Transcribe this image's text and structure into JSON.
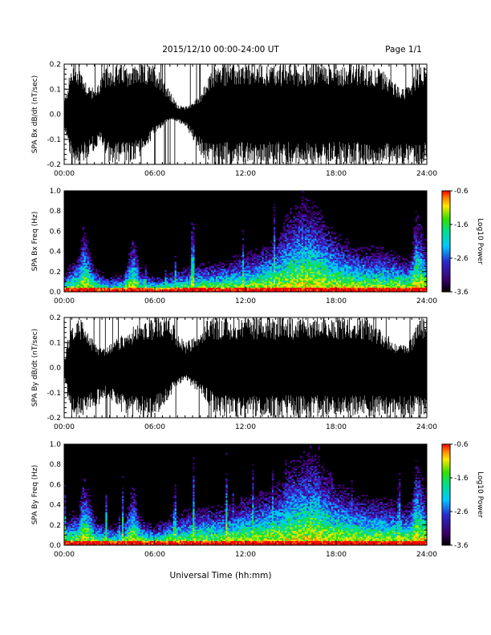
{
  "header": {
    "title": "2015/12/10  00:00-24:00 UT",
    "page": "Page 1/1"
  },
  "footer": {
    "xlabel": "Universal Time (hh:mm)"
  },
  "colors": {
    "trace": "#000000",
    "spectrogram_background": "#000000"
  },
  "chart_data": [
    {
      "type": "line",
      "ylabel": "SPA Bx dB/dt (nT/sec)",
      "xlim": [
        "00:00",
        "24:00"
      ],
      "ylim": [
        -0.2,
        0.2
      ],
      "x_ticks": [
        "00:00",
        "06:00",
        "12:00",
        "18:00",
        "24:00"
      ],
      "y_ticks": [
        "-0.2",
        "-0.1",
        "0.0",
        "0.1",
        "0.2"
      ],
      "series": [
        {
          "x": [
            0,
            0.5,
            1,
            1.5,
            2,
            2.5,
            3,
            3.5,
            4,
            4.5,
            5,
            5.5,
            6,
            6.5,
            7,
            7.5,
            8,
            8.5,
            9,
            9.5,
            10,
            11,
            12,
            13,
            14,
            15,
            16,
            17,
            18,
            19,
            20,
            21,
            22,
            22.5,
            23,
            23.5,
            24
          ],
          "upper": [
            0.05,
            0.2,
            0.2,
            0.13,
            0.1,
            0.16,
            0.2,
            0.2,
            0.2,
            0.2,
            0.2,
            0.2,
            0.2,
            0.16,
            0.09,
            0.04,
            0.03,
            0.05,
            0.08,
            0.14,
            0.2,
            0.2,
            0.2,
            0.2,
            0.2,
            0.2,
            0.2,
            0.2,
            0.2,
            0.2,
            0.2,
            0.18,
            0.12,
            0.1,
            0.14,
            0.2,
            0.2
          ],
          "lower": [
            -0.05,
            -0.2,
            -0.2,
            -0.2,
            -0.14,
            -0.12,
            -0.2,
            -0.2,
            -0.2,
            -0.2,
            -0.17,
            -0.13,
            -0.08,
            -0.05,
            -0.02,
            -0.03,
            -0.05,
            -0.1,
            -0.16,
            -0.2,
            -0.2,
            -0.2,
            -0.2,
            -0.2,
            -0.2,
            -0.2,
            -0.2,
            -0.2,
            -0.2,
            -0.2,
            -0.2,
            -0.2,
            -0.2,
            -0.2,
            -0.2,
            -0.2,
            -0.2
          ]
        }
      ]
    },
    {
      "type": "heatmap",
      "ylabel": "SPA Bx Freq (Hz)",
      "colorbar_label": "Log10 Power",
      "colorbar_ticks": [
        "-0.6",
        "-1.6",
        "-2.6",
        "-3.6"
      ],
      "clim": [
        -3.6,
        -0.6
      ],
      "xlim": [
        "00:00",
        "24:00"
      ],
      "ylim": [
        0.0,
        1.0
      ],
      "x_ticks": [
        "00:00",
        "06:00",
        "12:00",
        "18:00",
        "24:00"
      ],
      "y_ticks": [
        "0.0",
        "0.2",
        "0.4",
        "0.6",
        "0.8",
        "1.0"
      ],
      "activity": {
        "hours": [
          0,
          1,
          1.3,
          2,
          3,
          4,
          4.6,
          5,
          6,
          7,
          8,
          9,
          10,
          11,
          12,
          13,
          14,
          15,
          16,
          16.5,
          17,
          18,
          19,
          20,
          21,
          22,
          22.5,
          23,
          23.3,
          24
        ],
        "extent_hz": [
          0.2,
          0.4,
          0.7,
          0.25,
          0.15,
          0.2,
          0.6,
          0.25,
          0.15,
          0.2,
          0.25,
          0.3,
          0.3,
          0.35,
          0.4,
          0.45,
          0.55,
          0.85,
          0.95,
          0.9,
          0.8,
          0.6,
          0.5,
          0.45,
          0.45,
          0.4,
          0.35,
          0.4,
          0.85,
          0.5
        ]
      }
    },
    {
      "type": "line",
      "ylabel": "SPA By dB/dt (nT/sec)",
      "xlim": [
        "00:00",
        "24:00"
      ],
      "ylim": [
        -0.2,
        0.2
      ],
      "x_ticks": [
        "00:00",
        "06:00",
        "12:00",
        "18:00",
        "24:00"
      ],
      "y_ticks": [
        "-0.2",
        "-0.1",
        "0.0",
        "0.1",
        "0.2"
      ],
      "series": [
        {
          "x": [
            0,
            0.5,
            1,
            1.5,
            2,
            2.5,
            3,
            3.5,
            4,
            4.5,
            5,
            5.5,
            6,
            6.5,
            7,
            7.5,
            8,
            8.5,
            9,
            9.5,
            10,
            11,
            12,
            13,
            14,
            15,
            16,
            17,
            18,
            19,
            20,
            21,
            22,
            22.5,
            23,
            23.5,
            24
          ],
          "upper": [
            0.03,
            0.2,
            0.2,
            0.16,
            0.1,
            0.08,
            0.09,
            0.12,
            0.14,
            0.16,
            0.2,
            0.2,
            0.2,
            0.2,
            0.2,
            0.14,
            0.1,
            0.12,
            0.14,
            0.2,
            0.2,
            0.2,
            0.2,
            0.2,
            0.2,
            0.2,
            0.2,
            0.2,
            0.2,
            0.2,
            0.2,
            0.15,
            0.1,
            0.09,
            0.12,
            0.2,
            0.2
          ],
          "lower": [
            -0.05,
            -0.2,
            -0.2,
            -0.2,
            -0.16,
            -0.14,
            -0.12,
            -0.16,
            -0.2,
            -0.2,
            -0.2,
            -0.2,
            -0.2,
            -0.17,
            -0.12,
            -0.07,
            -0.05,
            -0.08,
            -0.1,
            -0.14,
            -0.2,
            -0.2,
            -0.2,
            -0.2,
            -0.2,
            -0.2,
            -0.2,
            -0.2,
            -0.2,
            -0.2,
            -0.2,
            -0.2,
            -0.2,
            -0.2,
            -0.2,
            -0.2,
            -0.2
          ]
        }
      ]
    },
    {
      "type": "heatmap",
      "ylabel": "SPA By Freq (Hz)",
      "colorbar_label": "Log10 Power",
      "colorbar_ticks": [
        "-0.6",
        "-1.6",
        "-2.6",
        "-3.6"
      ],
      "clim": [
        -3.6,
        -0.6
      ],
      "xlim": [
        "00:00",
        "24:00"
      ],
      "ylim": [
        0.0,
        1.0
      ],
      "x_ticks": [
        "00:00",
        "06:00",
        "12:00",
        "18:00",
        "24:00"
      ],
      "y_ticks": [
        "0.0",
        "0.2",
        "0.4",
        "0.6",
        "0.8",
        "1.0"
      ],
      "activity": {
        "hours": [
          0,
          1,
          1.3,
          2,
          3,
          4,
          4.6,
          5,
          6,
          7,
          8,
          9,
          10,
          11,
          12,
          13,
          14,
          15,
          16,
          16.5,
          17,
          18,
          19,
          20,
          21,
          22,
          22.5,
          23,
          23.3,
          24
        ],
        "extent_hz": [
          0.25,
          0.4,
          0.75,
          0.3,
          0.2,
          0.25,
          0.65,
          0.3,
          0.2,
          0.3,
          0.35,
          0.4,
          0.4,
          0.45,
          0.5,
          0.55,
          0.6,
          0.85,
          0.95,
          0.9,
          0.85,
          0.65,
          0.55,
          0.5,
          0.5,
          0.45,
          0.4,
          0.45,
          0.9,
          0.55
        ]
      }
    }
  ]
}
